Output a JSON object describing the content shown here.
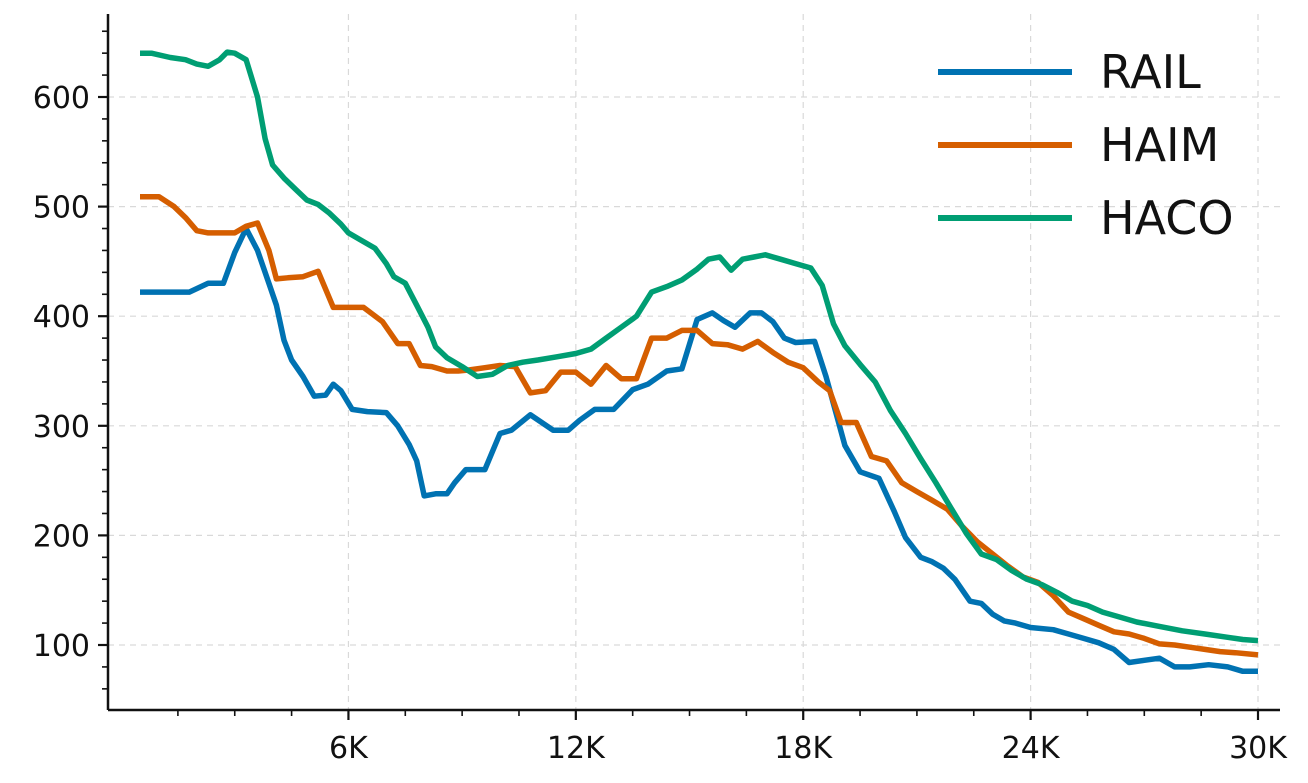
{
  "chart_data": {
    "type": "line",
    "title": "",
    "xlabel": "",
    "ylabel": "",
    "xlim": [
      300,
      30000
    ],
    "ylim": [
      43,
      676
    ],
    "x_ticks": [
      6000,
      12000,
      18000,
      24000,
      30000
    ],
    "x_tick_labels": [
      "6K",
      "12K",
      "18K",
      "24K",
      "30K"
    ],
    "y_ticks": [
      100,
      200,
      300,
      400,
      500,
      600
    ],
    "y_tick_labels": [
      "100",
      "200",
      "300",
      "400",
      "500",
      "600"
    ],
    "grid": true,
    "legend_position": "top-right",
    "series": [
      {
        "name": "RAIL",
        "color": "#0072b2",
        "x": [
          500,
          1200,
          1800,
          2300,
          2700,
          3000,
          3300,
          3600,
          3900,
          4100,
          4300,
          4500,
          4800,
          5100,
          5400,
          5600,
          5800,
          6100,
          6500,
          7000,
          7300,
          7600,
          7800,
          8000,
          8300,
          8600,
          8800,
          9100,
          9600,
          10000,
          10300,
          10800,
          11400,
          11800,
          12100,
          12500,
          13000,
          13500,
          13900,
          14400,
          14800,
          15200,
          15600,
          15900,
          16200,
          16600,
          16900,
          17200,
          17500,
          17800,
          18300,
          18600,
          18800,
          19100,
          19500,
          20000,
          20400,
          20700,
          21100,
          21400,
          21700,
          22000,
          22400,
          22700,
          23000,
          23300,
          23600,
          24000,
          24600,
          25000,
          25400,
          25800,
          26200,
          26600,
          27000,
          27400,
          27800,
          28200,
          28700,
          29200,
          29600,
          30000
        ],
        "y": [
          422,
          422,
          422,
          430,
          430,
          458,
          480,
          460,
          430,
          410,
          378,
          360,
          345,
          327,
          328,
          338,
          332,
          315,
          313,
          312,
          300,
          283,
          268,
          236,
          238,
          238,
          248,
          260,
          260,
          293,
          296,
          310,
          296,
          296,
          305,
          315,
          315,
          333,
          338,
          350,
          352,
          397,
          403,
          396,
          390,
          403,
          403,
          395,
          380,
          376,
          377,
          345,
          320,
          282,
          258,
          252,
          222,
          198,
          180,
          176,
          170,
          160,
          140,
          138,
          128,
          122,
          120,
          116,
          114,
          110,
          106,
          102,
          96,
          84,
          86,
          88,
          80,
          80,
          82,
          80,
          76,
          76
        ]
      },
      {
        "name": "HAIM",
        "color": "#d55e00",
        "x": [
          500,
          1000,
          1400,
          1700,
          2000,
          2300,
          2600,
          3000,
          3300,
          3600,
          3900,
          4100,
          4400,
          4800,
          5200,
          5600,
          6000,
          6400,
          6900,
          7300,
          7600,
          7900,
          8200,
          8600,
          8900,
          9200,
          9600,
          10000,
          10400,
          10800,
          11200,
          11600,
          12000,
          12400,
          12800,
          13200,
          13600,
          14000,
          14400,
          14800,
          15200,
          15600,
          16000,
          16400,
          16800,
          17200,
          17600,
          18000,
          18400,
          18700,
          19000,
          19400,
          19800,
          20200,
          20600,
          21000,
          21400,
          21800,
          22200,
          22600,
          23000,
          23400,
          23800,
          24200,
          24600,
          25000,
          25400,
          25800,
          26200,
          26600,
          27000,
          27400,
          27800,
          28200,
          28600,
          29000,
          29400,
          30000
        ],
        "y": [
          509,
          509,
          500,
          490,
          478,
          476,
          476,
          476,
          482,
          485,
          460,
          434,
          435,
          436,
          441,
          408,
          408,
          408,
          395,
          375,
          375,
          355,
          354,
          350,
          350,
          351,
          353,
          355,
          354,
          330,
          332,
          349,
          349,
          338,
          355,
          343,
          343,
          380,
          380,
          387,
          387,
          375,
          374,
          370,
          377,
          367,
          358,
          353,
          340,
          332,
          303,
          303,
          272,
          268,
          248,
          240,
          232,
          224,
          208,
          194,
          183,
          172,
          162,
          157,
          145,
          130,
          124,
          118,
          112,
          110,
          106,
          101,
          100,
          98,
          96,
          94,
          93,
          91
        ]
      },
      {
        "name": "HACO",
        "color": "#009e73",
        "x": [
          500,
          800,
          1300,
          1700,
          2000,
          2300,
          2600,
          2800,
          3000,
          3300,
          3600,
          3800,
          4000,
          4300,
          4600,
          4900,
          5200,
          5500,
          5800,
          6000,
          6300,
          6700,
          7000,
          7200,
          7500,
          7800,
          8100,
          8300,
          8600,
          9000,
          9400,
          9800,
          10200,
          10600,
          11000,
          11500,
          12000,
          12400,
          12800,
          13200,
          13600,
          14000,
          14400,
          14800,
          15200,
          15500,
          15800,
          16100,
          16400,
          16700,
          17000,
          17400,
          17800,
          18200,
          18500,
          18800,
          19100,
          19500,
          19900,
          20300,
          20700,
          21100,
          21500,
          21900,
          22300,
          22700,
          23100,
          23500,
          23900,
          24300,
          24700,
          25100,
          25500,
          25900,
          26300,
          26800,
          27400,
          28000,
          28600,
          29200,
          29600,
          30000
        ],
        "y": [
          640,
          640,
          636,
          634,
          630,
          628,
          634,
          641,
          640,
          634,
          600,
          562,
          538,
          526,
          516,
          506,
          502,
          494,
          484,
          476,
          470,
          462,
          448,
          436,
          430,
          410,
          390,
          372,
          362,
          354,
          345,
          347,
          355,
          358,
          360,
          363,
          366,
          370,
          380,
          390,
          400,
          422,
          427,
          433,
          443,
          452,
          454,
          442,
          452,
          454,
          456,
          452,
          448,
          444,
          428,
          393,
          373,
          356,
          340,
          314,
          293,
          270,
          248,
          225,
          202,
          183,
          178,
          168,
          160,
          155,
          148,
          140,
          136,
          130,
          126,
          121,
          117,
          113,
          110,
          107,
          105,
          104
        ]
      }
    ]
  }
}
